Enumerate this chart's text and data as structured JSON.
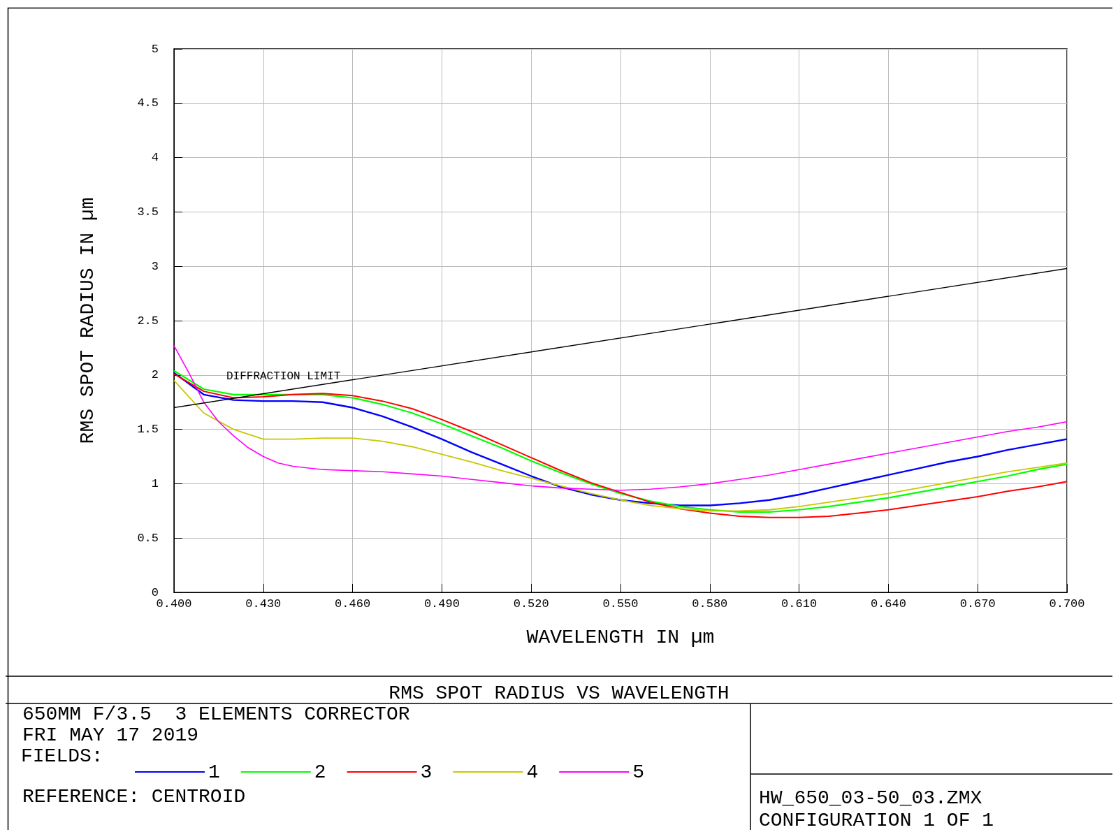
{
  "chart_data": {
    "type": "line",
    "title": "RMS SPOT RADIUS VS WAVELENGTH",
    "xlabel": "WAVELENGTH IN µm",
    "ylabel": "RMS SPOT RADIUS IN µm",
    "legend_title": "FIELDS:",
    "legend": "bottom",
    "grid": true,
    "marker": "none",
    "line_style": "solid",
    "xlim": [
      0.4,
      0.7
    ],
    "xticks": [
      {
        "value": 0.4,
        "label": "0.400"
      },
      {
        "value": 0.43,
        "label": "0.430"
      },
      {
        "value": 0.46,
        "label": "0.460"
      },
      {
        "value": 0.49,
        "label": "0.490"
      },
      {
        "value": 0.52,
        "label": "0.520"
      },
      {
        "value": 0.55,
        "label": "0.550"
      },
      {
        "value": 0.58,
        "label": "0.580"
      },
      {
        "value": 0.61,
        "label": "0.610"
      },
      {
        "value": 0.64,
        "label": "0.640"
      },
      {
        "value": 0.67,
        "label": "0.670"
      },
      {
        "value": 0.7,
        "label": "0.700"
      }
    ],
    "ylim": [
      0,
      5
    ],
    "yticks": [
      0,
      0.5,
      1,
      1.5,
      2,
      2.5,
      3,
      3.5,
      4,
      4.5,
      5
    ],
    "x": [
      0.4,
      0.41,
      0.42,
      0.43,
      0.44,
      0.45,
      0.46,
      0.47,
      0.48,
      0.49,
      0.5,
      0.51,
      0.52,
      0.53,
      0.54,
      0.55,
      0.56,
      0.57,
      0.58,
      0.59,
      0.6,
      0.61,
      0.62,
      0.63,
      0.64,
      0.65,
      0.66,
      0.67,
      0.68,
      0.69,
      0.7
    ],
    "series": [
      {
        "name": "1",
        "color": "#0000ff",
        "values": [
          2.02,
          1.82,
          1.77,
          1.76,
          1.76,
          1.75,
          1.7,
          1.62,
          1.52,
          1.41,
          1.29,
          1.18,
          1.07,
          0.97,
          0.9,
          0.85,
          0.82,
          0.8,
          0.8,
          0.82,
          0.85,
          0.9,
          0.96,
          1.02,
          1.08,
          1.14,
          1.2,
          1.25,
          1.31,
          1.36,
          1.41
        ]
      },
      {
        "name": "2",
        "color": "#00ff00",
        "values": [
          2.04,
          1.87,
          1.82,
          1.82,
          1.82,
          1.82,
          1.79,
          1.73,
          1.65,
          1.55,
          1.44,
          1.33,
          1.21,
          1.1,
          1.0,
          0.91,
          0.84,
          0.79,
          0.76,
          0.74,
          0.74,
          0.76,
          0.79,
          0.83,
          0.87,
          0.92,
          0.97,
          1.02,
          1.07,
          1.13,
          1.18
        ]
      },
      {
        "name": "3",
        "color": "#ff0000",
        "values": [
          2.01,
          1.85,
          1.79,
          1.8,
          1.82,
          1.83,
          1.81,
          1.76,
          1.69,
          1.59,
          1.48,
          1.36,
          1.24,
          1.12,
          1.01,
          0.92,
          0.83,
          0.77,
          0.73,
          0.7,
          0.69,
          0.69,
          0.7,
          0.73,
          0.76,
          0.8,
          0.84,
          0.88,
          0.93,
          0.97,
          1.02
        ]
      },
      {
        "name": "4",
        "color": "#c8c800",
        "values": [
          1.95,
          1.65,
          1.5,
          1.41,
          1.41,
          1.42,
          1.42,
          1.39,
          1.34,
          1.27,
          1.2,
          1.12,
          1.05,
          0.98,
          0.91,
          0.85,
          0.8,
          0.77,
          0.75,
          0.75,
          0.76,
          0.79,
          0.83,
          0.87,
          0.91,
          0.96,
          1.01,
          1.06,
          1.11,
          1.15,
          1.19
        ]
      },
      {
        "name": "5",
        "color": "#ff00ff",
        "x": [
          0.4,
          0.405,
          0.41,
          0.415,
          0.42,
          0.425,
          0.43,
          0.435,
          0.44,
          0.45,
          0.46,
          0.47,
          0.48,
          0.49,
          0.5,
          0.51,
          0.52,
          0.53,
          0.54,
          0.55,
          0.56,
          0.57,
          0.58,
          0.59,
          0.6,
          0.61,
          0.62,
          0.63,
          0.64,
          0.65,
          0.66,
          0.67,
          0.68,
          0.69,
          0.7
        ],
        "values": [
          2.27,
          2.02,
          1.75,
          1.57,
          1.44,
          1.33,
          1.25,
          1.19,
          1.16,
          1.13,
          1.12,
          1.11,
          1.09,
          1.07,
          1.04,
          1.01,
          0.98,
          0.96,
          0.95,
          0.94,
          0.95,
          0.97,
          1.0,
          1.04,
          1.08,
          1.13,
          1.18,
          1.23,
          1.28,
          1.33,
          1.38,
          1.43,
          1.48,
          1.52,
          1.57
        ]
      },
      {
        "name": "DIFFRACTION LIMIT",
        "color": "#000000",
        "x": [
          0.4,
          0.7
        ],
        "values": [
          1.7,
          2.98
        ]
      }
    ],
    "annotations": [
      "650MM F/3.5  3 ELEMENTS CORRECTOR",
      "FRI MAY 17 2019",
      "REFERENCE: CENTROID",
      "HW_650_03-50_03.ZMX",
      "CONFIGURATION 1 OF 1"
    ]
  }
}
